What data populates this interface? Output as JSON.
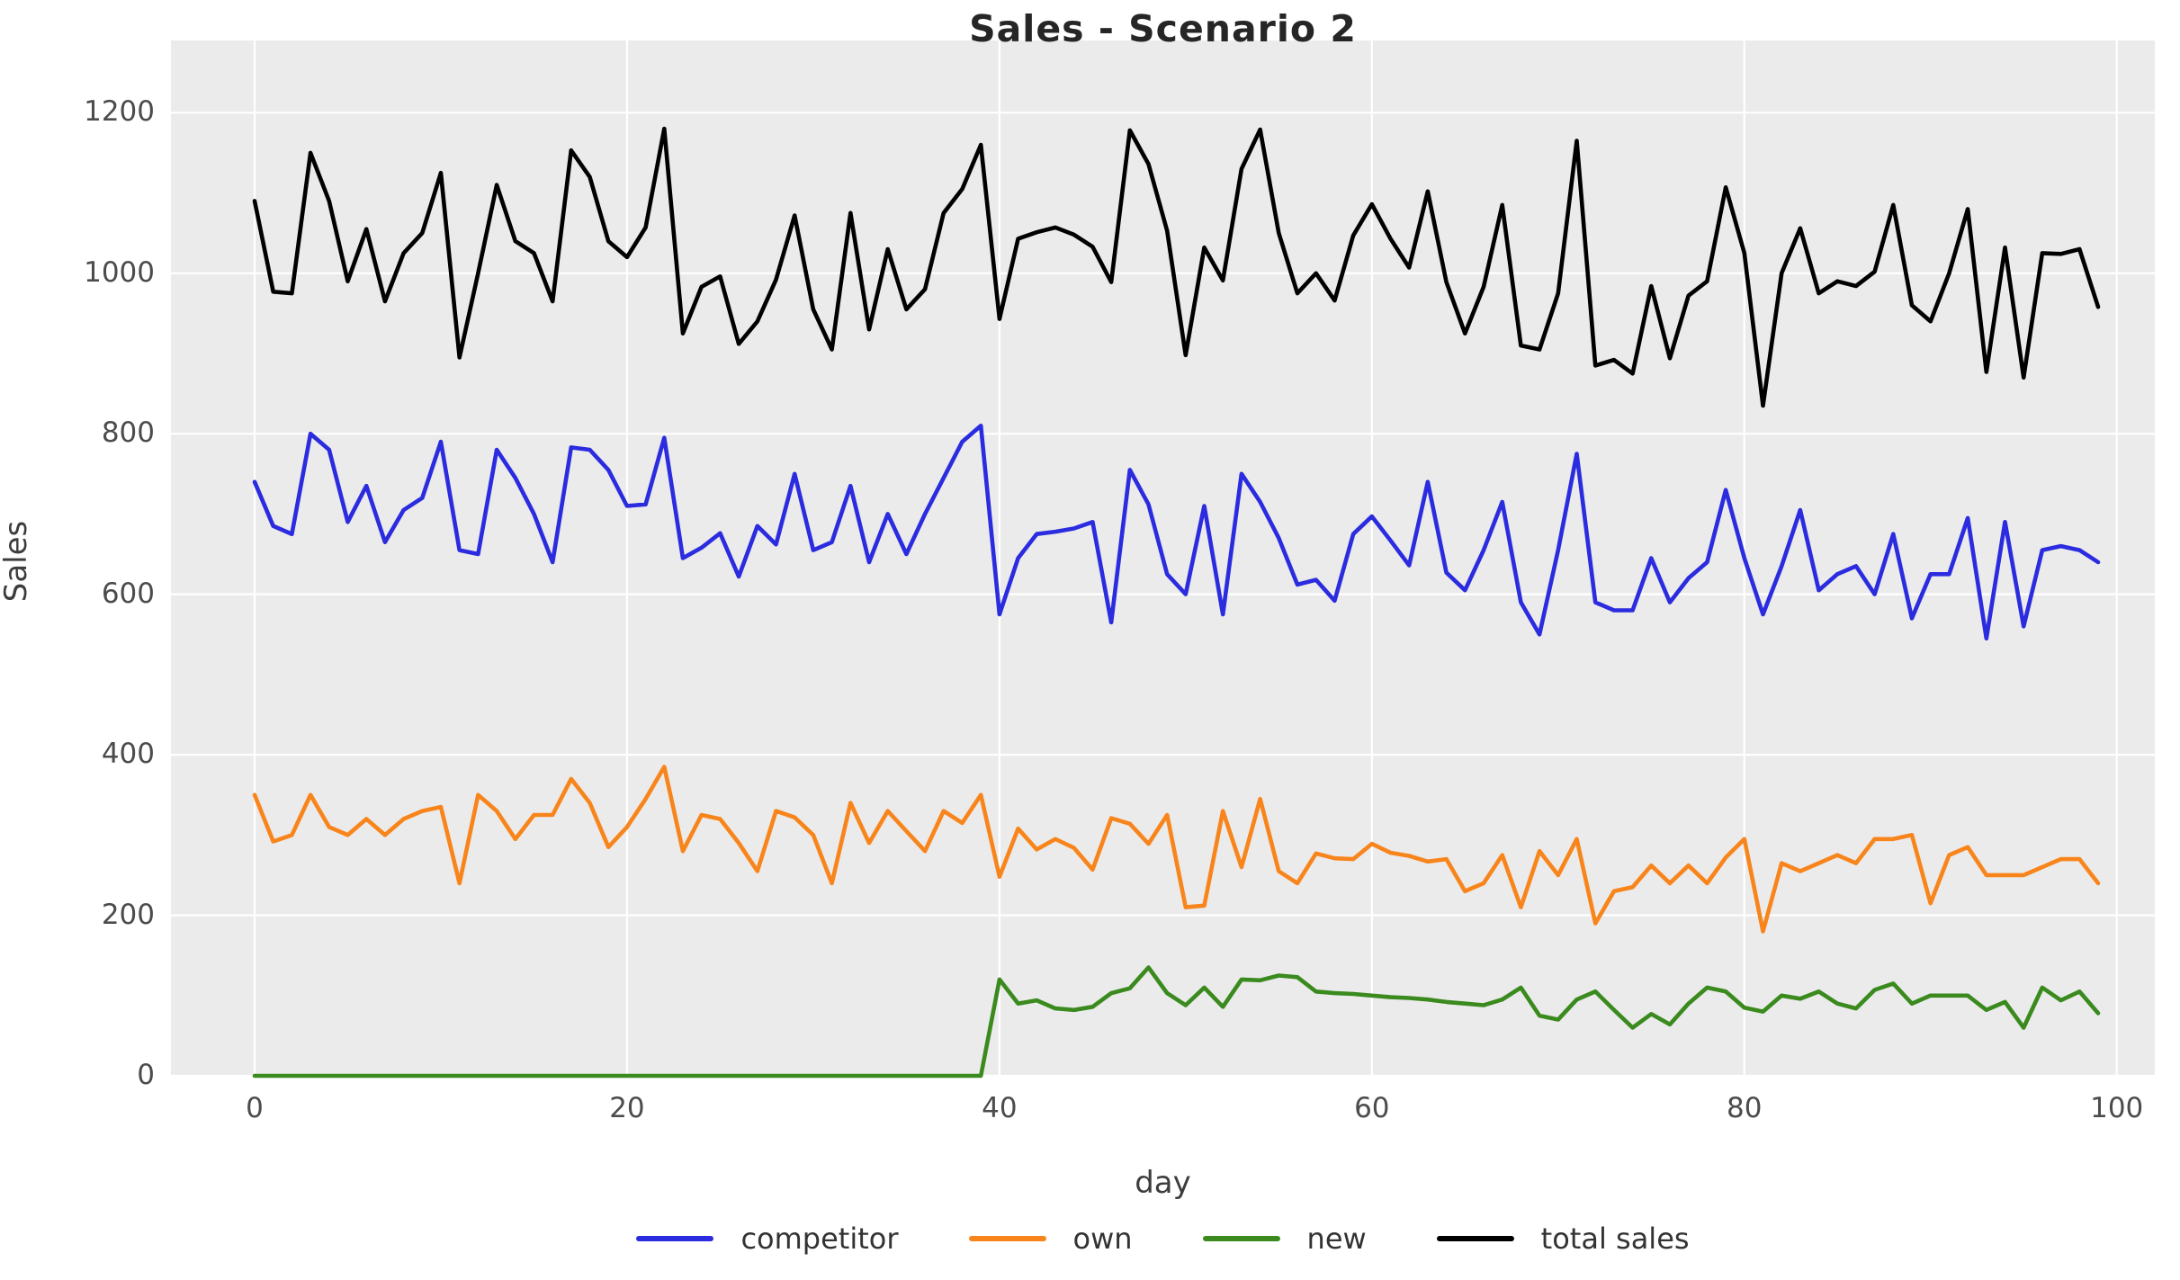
{
  "figure": {
    "title": "Sales - Scenario 2",
    "background_color": "#ffffff",
    "plot_background_color": "#ebebeb",
    "grid_color": "#ffffff",
    "title_color": "#262626"
  },
  "axes": {
    "xlabel": "day",
    "ylabel": "Sales",
    "xticks": [
      0,
      20,
      40,
      60,
      80,
      100
    ],
    "yticks": [
      0,
      200,
      400,
      600,
      800,
      1000,
      1200
    ],
    "tick_color": "#4c4c4c"
  },
  "chart_data": {
    "type": "line",
    "title": "Sales - Scenario 2",
    "xlabel": "day",
    "ylabel": "Sales",
    "x": "days 0 through 99 (step 1)",
    "x_start": 0,
    "x_end": 99,
    "xlim": [
      -4.5,
      102
    ],
    "ylim": [
      0,
      1290
    ],
    "grid": true,
    "legend_position": "bottom-center",
    "note": "total sales = competitor + own + new; 'new' product launches at day 40 (zero before)",
    "series": [
      {
        "name": "competitor",
        "color": "#2b2bdf",
        "values": [
          740,
          685,
          675,
          800,
          780,
          690,
          735,
          665,
          705,
          720,
          790,
          655,
          650,
          780,
          745,
          700,
          640,
          783,
          780,
          755,
          710,
          712,
          795,
          645,
          658,
          676,
          622,
          685,
          662,
          750,
          655,
          665,
          735,
          640,
          700,
          650,
          700,
          745,
          790,
          810,
          575,
          645,
          675,
          678,
          682,
          690,
          565,
          755,
          712,
          625,
          600,
          710,
          575,
          750,
          715,
          670,
          612,
          618,
          592,
          675,
          697,
          667,
          636,
          740,
          627,
          605,
          655,
          715,
          590,
          550,
          655,
          775,
          590,
          580,
          580,
          645,
          590,
          620,
          640,
          730,
          645,
          575,
          635,
          705,
          605,
          625,
          635,
          600,
          675,
          570,
          625,
          625,
          695,
          545,
          690,
          560,
          655,
          660,
          655,
          640
        ]
      },
      {
        "name": "own",
        "color": "#f8851c",
        "values": [
          350,
          292,
          300,
          350,
          310,
          300,
          320,
          300,
          320,
          330,
          335,
          240,
          350,
          330,
          295,
          325,
          325,
          370,
          340,
          285,
          310,
          345,
          385,
          280,
          325,
          320,
          290,
          255,
          330,
          322,
          300,
          240,
          340,
          290,
          330,
          305,
          280,
          330,
          315,
          350,
          248,
          308,
          282,
          295,
          284,
          257,
          321,
          314,
          289,
          325,
          210,
          212,
          330,
          260,
          345,
          255,
          240,
          277,
          271,
          270,
          289,
          278,
          274,
          267,
          270,
          230,
          240,
          275,
          210,
          280,
          250,
          295,
          190,
          230,
          235,
          262,
          240,
          262,
          240,
          272,
          295,
          180,
          265,
          255,
          265,
          275,
          265,
          295,
          295,
          300,
          215,
          275,
          285,
          250,
          250,
          250,
          260,
          270,
          270,
          240
        ]
      },
      {
        "name": "new",
        "color": "#3a8a1e",
        "values": [
          0,
          0,
          0,
          0,
          0,
          0,
          0,
          0,
          0,
          0,
          0,
          0,
          0,
          0,
          0,
          0,
          0,
          0,
          0,
          0,
          0,
          0,
          0,
          0,
          0,
          0,
          0,
          0,
          0,
          0,
          0,
          0,
          0,
          0,
          0,
          0,
          0,
          0,
          0,
          0,
          120,
          90,
          94,
          84,
          82,
          86,
          103,
          109,
          135,
          103,
          88,
          110,
          86,
          120,
          119,
          125,
          123,
          105,
          103,
          102,
          100,
          98,
          97,
          95,
          92,
          90,
          88,
          95,
          110,
          75,
          70,
          95,
          105,
          82,
          60,
          77,
          64,
          90,
          110,
          105,
          85,
          80,
          100,
          96,
          105,
          90,
          84,
          107,
          115,
          90,
          100,
          100,
          100,
          82,
          92,
          60,
          110,
          94,
          105,
          78
        ]
      },
      {
        "name": "total sales",
        "color": "#000000",
        "values": [
          1090,
          977,
          975,
          1150,
          1090,
          990,
          1055,
          965,
          1025,
          1050,
          1125,
          895,
          1000,
          1110,
          1040,
          1025,
          965,
          1153,
          1120,
          1040,
          1020,
          1057,
          1180,
          925,
          983,
          996,
          912,
          940,
          992,
          1072,
          955,
          905,
          1075,
          930,
          1030,
          955,
          980,
          1075,
          1105,
          1160,
          943,
          1043,
          1051,
          1057,
          1048,
          1033,
          989,
          1178,
          1136,
          1053,
          898,
          1032,
          991,
          1130,
          1179,
          1050,
          975,
          1000,
          966,
          1047,
          1086,
          1043,
          1007,
          1102,
          989,
          925,
          983,
          1085,
          910,
          905,
          975,
          1165,
          885,
          892,
          875,
          984,
          894,
          972,
          990,
          1107,
          1025,
          835,
          1000,
          1056,
          975,
          990,
          984,
          1002,
          1085,
          960,
          940,
          1000,
          1080,
          877,
          1032,
          870,
          1025,
          1024,
          1030,
          958
        ]
      }
    ]
  },
  "legend": {
    "entries": [
      {
        "label": "competitor",
        "color": "#2b2bdf"
      },
      {
        "label": "own",
        "color": "#f8851c"
      },
      {
        "label": "new",
        "color": "#3a8a1e"
      },
      {
        "label": "total sales",
        "color": "#000000"
      }
    ]
  }
}
